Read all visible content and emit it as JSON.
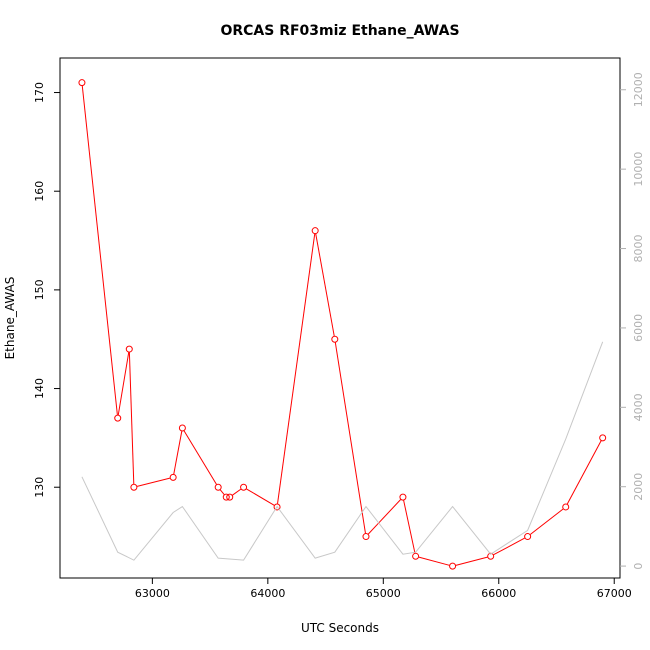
{
  "chart_data": {
    "type": "line",
    "title": "ORCAS RF03miz Ethane_AWAS",
    "xlabel": "UTC Seconds",
    "ylabel": "Ethane_AWAS",
    "xlim": [
      62200,
      67050
    ],
    "ylim": [
      120.8,
      173.5
    ],
    "y2lim": [
      -300,
      12800
    ],
    "x_ticks": [
      63000,
      64000,
      65000,
      66000,
      67000
    ],
    "y_ticks": [
      130,
      140,
      150,
      160,
      170
    ],
    "y2_ticks": [
      0,
      2000,
      4000,
      6000,
      8000,
      10000,
      12000
    ],
    "grid": false,
    "series": [
      {
        "axis": "left",
        "color": "#ff0000",
        "markers": "open-circle",
        "x": [
          62390,
          62700,
          62800,
          62840,
          63180,
          63260,
          63570,
          63640,
          63670,
          63790,
          64080,
          64410,
          64580,
          64850,
          65170,
          65280,
          65600,
          65930,
          66250,
          66580,
          66900
        ],
        "y": [
          171,
          137,
          144,
          130,
          131,
          136,
          130,
          129,
          129,
          130,
          128,
          156,
          145,
          125,
          129,
          123,
          122,
          123,
          125,
          128,
          135
        ]
      },
      {
        "axis": "right",
        "color": "#c8c8c8",
        "markers": "none",
        "x": [
          62390,
          62700,
          62840,
          63180,
          63260,
          63570,
          63790,
          64080,
          64410,
          64580,
          64850,
          65170,
          65280,
          65600,
          65930,
          66250,
          66580,
          66900
        ],
        "y": [
          2250,
          350,
          150,
          1350,
          1500,
          200,
          150,
          1500,
          200,
          350,
          1500,
          300,
          350,
          1500,
          300,
          900,
          3200,
          5650
        ]
      }
    ]
  }
}
